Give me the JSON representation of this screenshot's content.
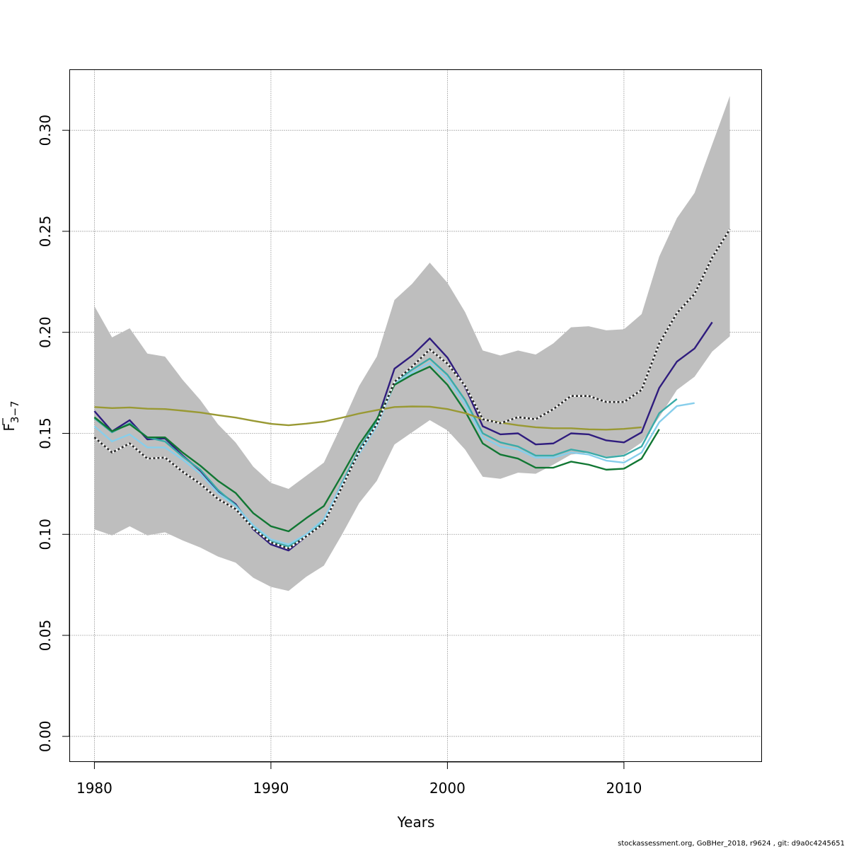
{
  "chart_data": {
    "type": "line",
    "title": "",
    "xlabel": "Years",
    "ylabel_main": "F",
    "ylabel_sub": "3−7",
    "xlim": [
      1978.6,
      2017.8
    ],
    "ylim": [
      -0.0125,
      0.33
    ],
    "x_ticks": [
      1980,
      1990,
      2000,
      2010
    ],
    "x_tick_labels": [
      "1980",
      "1990",
      "2000",
      "2010"
    ],
    "y_ticks": [
      0.0,
      0.05,
      0.1,
      0.15,
      0.2,
      0.25,
      0.3
    ],
    "y_tick_labels": [
      "0.00",
      "0.05",
      "0.10",
      "0.15",
      "0.20",
      "0.25",
      "0.30"
    ],
    "grid": true,
    "confidence_band": {
      "color": "#bebebe",
      "x": [
        1980,
        1981,
        1982,
        1983,
        1984,
        1985,
        1986,
        1987,
        1988,
        1989,
        1990,
        1991,
        1992,
        1993,
        1994,
        1995,
        1996,
        1997,
        1998,
        1999,
        2000,
        2001,
        2002,
        2003,
        2004,
        2005,
        2006,
        2007,
        2008,
        2009,
        2010,
        2011,
        2012,
        2013,
        2014,
        2015,
        2016
      ],
      "upper": [
        0.213,
        0.1975,
        0.202,
        0.1895,
        0.188,
        0.1765,
        0.1665,
        0.1545,
        0.1455,
        0.1335,
        0.1255,
        0.1225,
        0.129,
        0.1355,
        0.154,
        0.1735,
        0.188,
        0.216,
        0.224,
        0.2345,
        0.2245,
        0.21,
        0.191,
        0.1885,
        0.191,
        0.189,
        0.1945,
        0.2025,
        0.203,
        0.201,
        0.2015,
        0.209,
        0.2375,
        0.2565,
        0.269,
        0.293,
        0.317
      ],
      "lower": [
        0.1025,
        0.0995,
        0.104,
        0.0995,
        0.101,
        0.097,
        0.0935,
        0.089,
        0.086,
        0.0785,
        0.074,
        0.072,
        0.079,
        0.0845,
        0.0995,
        0.1155,
        0.1265,
        0.1445,
        0.1505,
        0.1565,
        0.1515,
        0.142,
        0.1285,
        0.1275,
        0.1305,
        0.13,
        0.1345,
        0.1395,
        0.1405,
        0.1385,
        0.1395,
        0.1455,
        0.158,
        0.1715,
        0.178,
        0.1905,
        0.198
      ]
    },
    "series": [
      {
        "color": "#2a2a2a",
        "dashed": true,
        "x": [
          1980,
          1981,
          1982,
          1983,
          1984,
          1985,
          1986,
          1987,
          1988,
          1989,
          1990,
          1991,
          1992,
          1993,
          1994,
          1995,
          1996,
          1997,
          1998,
          1999,
          2000,
          2001,
          2002,
          2003,
          2004,
          2005,
          2006,
          2007,
          2008,
          2009,
          2010,
          2011,
          2012,
          2013,
          2014,
          2015,
          2016
        ],
        "values": [
          0.148,
          0.1405,
          0.145,
          0.1375,
          0.138,
          0.131,
          0.125,
          0.1175,
          0.1125,
          0.103,
          0.096,
          0.093,
          0.099,
          0.1055,
          0.123,
          0.141,
          0.1545,
          0.1755,
          0.183,
          0.1915,
          0.1845,
          0.1735,
          0.157,
          0.155,
          0.158,
          0.157,
          0.162,
          0.1685,
          0.1685,
          0.1655,
          0.1655,
          0.1715,
          0.1945,
          0.2095,
          0.219,
          0.237,
          0.251
        ]
      },
      {
        "color": "#2f1c7e",
        "dashed": false,
        "x": [
          1980,
          1981,
          1982,
          1983,
          1984,
          1985,
          1986,
          1987,
          1988,
          1989,
          1990,
          1991,
          1992,
          1993,
          1994,
          1995,
          1996,
          1997,
          1998,
          1999,
          2000,
          2001,
          2002,
          2003,
          2004,
          2005,
          2006,
          2007,
          2008,
          2009,
          2010,
          2011,
          2012,
          2013,
          2014,
          2015
        ],
        "values": [
          0.161,
          0.151,
          0.1565,
          0.147,
          0.1475,
          0.139,
          0.1315,
          0.1215,
          0.115,
          0.1025,
          0.095,
          0.092,
          0.099,
          0.1055,
          0.1245,
          0.142,
          0.156,
          0.182,
          0.1885,
          0.197,
          0.1875,
          0.173,
          0.1535,
          0.1495,
          0.15,
          0.1445,
          0.145,
          0.15,
          0.1495,
          0.1465,
          0.1455,
          0.1505,
          0.1725,
          0.1855,
          0.192,
          0.205
        ]
      },
      {
        "color": "#3aaba8",
        "dashed": false,
        "x": [
          1980,
          1981,
          1982,
          1983,
          1984,
          1985,
          1986,
          1987,
          1988,
          1989,
          1990,
          1991,
          1992,
          1993,
          1994,
          1995,
          1996,
          1997,
          1998,
          1999,
          2000,
          2001,
          2002,
          2003,
          2004,
          2005,
          2006,
          2007,
          2008,
          2009,
          2010,
          2011,
          2012,
          2013
        ],
        "values": [
          0.1575,
          0.1505,
          0.155,
          0.148,
          0.146,
          0.1385,
          0.132,
          0.122,
          0.1145,
          0.104,
          0.0965,
          0.094,
          0.0995,
          0.1065,
          0.125,
          0.142,
          0.156,
          0.1755,
          0.1815,
          0.187,
          0.179,
          0.1665,
          0.15,
          0.1455,
          0.1435,
          0.139,
          0.139,
          0.142,
          0.1405,
          0.138,
          0.139,
          0.1435,
          0.16,
          0.167
        ]
      },
      {
        "color": "#87ceeb",
        "dashed": false,
        "x": [
          1980,
          1981,
          1982,
          1983,
          1984,
          1985,
          1986,
          1987,
          1988,
          1989,
          1990,
          1991,
          1992,
          1993,
          1994,
          1995,
          1996,
          1997,
          1998,
          1999,
          2000,
          2001,
          2002,
          2003,
          2004,
          2005,
          2006,
          2007,
          2008,
          2009,
          2010,
          2011,
          2012,
          2013,
          2014
        ],
        "values": [
          0.1535,
          0.146,
          0.1495,
          0.143,
          0.143,
          0.137,
          0.13,
          0.1205,
          0.114,
          0.1045,
          0.0975,
          0.095,
          0.1,
          0.1075,
          0.1245,
          0.14,
          0.1535,
          0.1745,
          0.18,
          0.185,
          0.177,
          0.1645,
          0.148,
          0.1435,
          0.142,
          0.138,
          0.138,
          0.1405,
          0.1395,
          0.1365,
          0.1355,
          0.1405,
          0.1555,
          0.1635,
          0.165
        ]
      },
      {
        "color": "#117733",
        "dashed": false,
        "x": [
          1980,
          1981,
          1982,
          1983,
          1984,
          1985,
          1986,
          1987,
          1988,
          1989,
          1990,
          1991,
          1992,
          1993,
          1994,
          1995,
          1996,
          1997,
          1998,
          1999,
          2000,
          2001,
          2002,
          2003,
          2004,
          2005,
          2006,
          2007,
          2008,
          2009,
          2010,
          2011,
          2012
        ],
        "values": [
          0.158,
          0.151,
          0.1545,
          0.148,
          0.148,
          0.1405,
          0.134,
          0.1265,
          0.1205,
          0.1105,
          0.104,
          0.1015,
          0.108,
          0.114,
          0.129,
          0.1445,
          0.157,
          0.174,
          0.179,
          0.183,
          0.174,
          0.161,
          0.145,
          0.1395,
          0.1375,
          0.133,
          0.133,
          0.136,
          0.1345,
          0.132,
          0.1325,
          0.1375,
          0.152
        ]
      },
      {
        "color": "#999933",
        "dashed": false,
        "x": [
          1980,
          1981,
          1982,
          1983,
          1984,
          1985,
          1986,
          1987,
          1988,
          1989,
          1990,
          1991,
          1992,
          1993,
          1994,
          1995,
          1996,
          1997,
          1998,
          1999,
          2000,
          2001,
          2002,
          2003,
          2004,
          2005,
          2006,
          2007,
          2008,
          2009,
          2010,
          2011
        ],
        "values": [
          0.163,
          0.1625,
          0.1628,
          0.1622,
          0.162,
          0.1612,
          0.1603,
          0.159,
          0.1578,
          0.1562,
          0.1547,
          0.154,
          0.1548,
          0.1558,
          0.1577,
          0.1598,
          0.1615,
          0.163,
          0.1633,
          0.1632,
          0.162,
          0.16,
          0.157,
          0.1553,
          0.154,
          0.153,
          0.1525,
          0.1525,
          0.152,
          0.1518,
          0.1522,
          0.153
        ]
      }
    ]
  },
  "footer": "stockassessment.org, GoBHer_2018, r9624 , git: d9a0c4245651"
}
